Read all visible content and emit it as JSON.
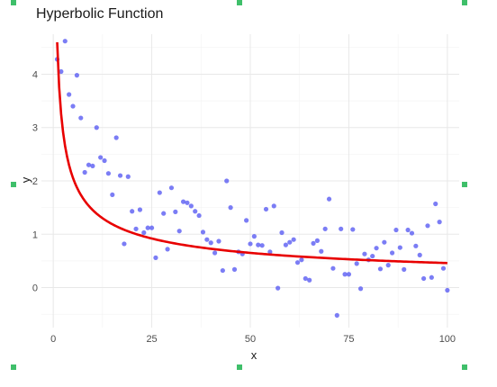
{
  "chart_data": {
    "type": "scatter",
    "title": "Hyperbolic Function",
    "xlabel": "x",
    "ylabel": "y",
    "xlim": [
      -3,
      103
    ],
    "ylim": [
      -0.75,
      4.75
    ],
    "x_ticks": [
      0,
      25,
      50,
      75,
      100
    ],
    "y_ticks": [
      0,
      1,
      2,
      3,
      4
    ],
    "grid": true,
    "legend": "none",
    "point_color": "#5a5cf2",
    "curve_color": "#e80000",
    "points": [
      [
        1,
        4.28
      ],
      [
        2,
        4.05
      ],
      [
        3,
        4.62
      ],
      [
        4,
        3.62
      ],
      [
        5,
        3.4
      ],
      [
        6,
        3.98
      ],
      [
        7,
        3.18
      ],
      [
        8,
        2.16
      ],
      [
        9,
        2.3
      ],
      [
        10,
        2.28
      ],
      [
        11,
        3.0
      ],
      [
        12,
        2.44
      ],
      [
        13,
        2.38
      ],
      [
        14,
        2.14
      ],
      [
        15,
        1.74
      ],
      [
        16,
        2.81
      ],
      [
        17,
        2.1
      ],
      [
        18,
        0.82
      ],
      [
        19,
        2.08
      ],
      [
        20,
        1.43
      ],
      [
        21,
        1.1
      ],
      [
        22,
        1.46
      ],
      [
        23,
        1.03
      ],
      [
        24,
        1.12
      ],
      [
        25,
        1.12
      ],
      [
        26,
        0.56
      ],
      [
        27,
        1.78
      ],
      [
        28,
        1.39
      ],
      [
        29,
        0.72
      ],
      [
        30,
        1.87
      ],
      [
        31,
        1.42
      ],
      [
        32,
        1.06
      ],
      [
        33,
        1.61
      ],
      [
        34,
        1.59
      ],
      [
        35,
        1.53
      ],
      [
        36,
        1.43
      ],
      [
        37,
        1.35
      ],
      [
        38,
        1.04
      ],
      [
        39,
        0.9
      ],
      [
        40,
        0.84
      ],
      [
        41,
        0.65
      ],
      [
        42,
        0.87
      ],
      [
        43,
        0.32
      ],
      [
        44,
        2.0
      ],
      [
        45,
        1.5
      ],
      [
        46,
        0.34
      ],
      [
        47,
        0.67
      ],
      [
        48,
        0.63
      ],
      [
        49,
        1.26
      ],
      [
        50,
        0.82
      ],
      [
        51,
        0.96
      ],
      [
        52,
        0.8
      ],
      [
        53,
        0.79
      ],
      [
        54,
        1.47
      ],
      [
        55,
        0.67
      ],
      [
        56,
        1.53
      ],
      [
        57,
        -0.01
      ],
      [
        58,
        1.03
      ],
      [
        59,
        0.8
      ],
      [
        60,
        0.85
      ],
      [
        61,
        0.9
      ],
      [
        62,
        0.47
      ],
      [
        63,
        0.52
      ],
      [
        64,
        0.17
      ],
      [
        65,
        0.14
      ],
      [
        66,
        0.83
      ],
      [
        67,
        0.88
      ],
      [
        68,
        0.68
      ],
      [
        69,
        1.1
      ],
      [
        70,
        1.66
      ],
      [
        71,
        0.36
      ],
      [
        72,
        -0.52
      ],
      [
        73,
        1.1
      ],
      [
        74,
        0.25
      ],
      [
        75,
        0.25
      ],
      [
        76,
        1.09
      ],
      [
        77,
        0.45
      ],
      [
        78,
        -0.02
      ],
      [
        79,
        0.63
      ],
      [
        80,
        0.52
      ],
      [
        81,
        0.59
      ],
      [
        82,
        0.74
      ],
      [
        83,
        0.35
      ],
      [
        84,
        0.85
      ],
      [
        85,
        0.42
      ],
      [
        86,
        0.65
      ],
      [
        87,
        1.08
      ],
      [
        88,
        0.75
      ],
      [
        89,
        0.34
      ],
      [
        90,
        1.08
      ],
      [
        91,
        1.02
      ],
      [
        92,
        0.78
      ],
      [
        93,
        0.61
      ],
      [
        94,
        0.17
      ],
      [
        95,
        1.16
      ],
      [
        96,
        0.19
      ],
      [
        97,
        1.57
      ],
      [
        98,
        1.23
      ],
      [
        99,
        0.36
      ],
      [
        100,
        -0.05
      ]
    ],
    "curve": {
      "formula": "y = 4.6 / x^0.5",
      "x_range": [
        1,
        100
      ]
    }
  }
}
